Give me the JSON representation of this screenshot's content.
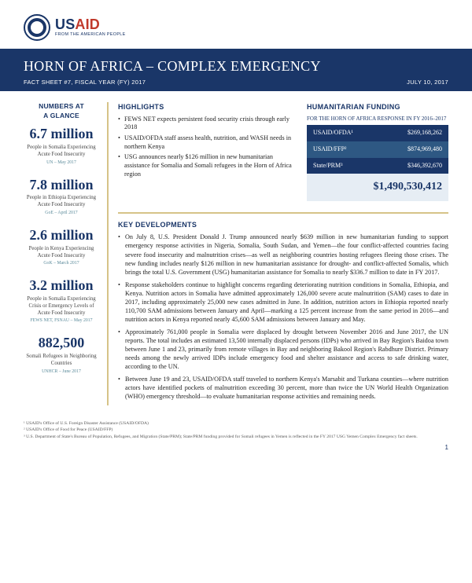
{
  "brand": {
    "name_a": "US",
    "name_b": "AID",
    "tag": "FROM THE AMERICAN PEOPLE"
  },
  "title": "HORN OF AFRICA – COMPLEX EMERGENCY",
  "factsheet": "FACT SHEET #7, FISCAL YEAR (FY) 2017",
  "date": "JULY 10, 2017",
  "sidebar_title1": "NUMBERS AT",
  "sidebar_title2": "A GLANCE",
  "stats": [
    {
      "value": "6.7 million",
      "desc": "People in Somalia Experiencing Acute Food Insecurity",
      "src": "UN – May 2017"
    },
    {
      "value": "7.8 million",
      "desc": "People in Ethiopia Experiencing Acute Food Insecurity",
      "src": "GoE – April 2017"
    },
    {
      "value": "2.6 million",
      "desc": "People in Kenya Experiencing Acute Food Insecurity",
      "src": "GoK – March 2017"
    },
    {
      "value": "3.2 million",
      "desc": "People in Somalia Experiencing Crisis or Emergency Levels of Acute Food Insecurity",
      "src": "FEWS NET, FSNAU – May 2017"
    },
    {
      "value": "882,500",
      "desc": "Somali Refugees in Neighboring Countries",
      "src": "UNHCR – June 2017"
    }
  ],
  "highlights_h": "HIGHLIGHTS",
  "highlights": [
    "FEWS NET expects persistent food security crisis through early 2018",
    "USAID/OFDA staff assess health, nutrition, and WASH needs in northern Kenya",
    "USG announces nearly $126 million in new humanitarian assistance for Somalia and Somali refugees in the Horn of Africa region"
  ],
  "funding_h": "HUMANITARIAN FUNDING",
  "funding_sub": "FOR THE HORN OF AFRICA RESPONSE IN FY 2016–2017",
  "funding_rows": [
    {
      "label": "USAID/OFDA¹",
      "amount": "$269,168,262"
    },
    {
      "label": "USAID/FFP²",
      "amount": "$874,969,480"
    },
    {
      "label": "State/PRM³",
      "amount": "$346,392,670"
    }
  ],
  "funding_total": "$1,490,530,412",
  "kd_h": "KEY DEVELOPMENTS",
  "kd": [
    "On July 8, U.S. President Donald J. Trump announced nearly $639 million in new humanitarian funding to support emergency response activities in Nigeria, Somalia, South Sudan, and Yemen—the four conflict-affected countries facing severe food insecurity and malnutrition crises—as well as neighboring countries hosting refugees fleeing those crises. The new funding includes nearly $126 million in new humanitarian assistance for drought- and conflict-affected Somalis, which brings the total U.S. Government (USG) humanitarian assistance for Somalia to nearly $336.7 million to date in FY 2017.",
    "Response stakeholders continue to highlight concerns regarding deteriorating nutrition conditions in Somalia, Ethiopia, and Kenya. Nutrition actors in Somalia have admitted approximately 126,000 severe acute malnutrition (SAM) cases to date in 2017, including approximately 25,000 new cases admitted in June. In addition, nutrition actors in Ethiopia reported nearly 110,700 SAM admissions between January and April—marking a 125 percent increase from the same period in 2016—and nutrition actors in Kenya reported nearly 45,600 SAM admissions between January and May.",
    "Approximately 761,000 people in Somalia were displaced by drought between November 2016 and June 2017, the UN reports. The total includes an estimated 13,500 internally displaced persons (IDPs) who arrived in Bay Region's Baidoa town between June 1 and 23, primarily from remote villages in Bay and neighboring Bakool Region's Rabdhure District. Primary needs among the newly arrived IDPs include emergency food and shelter assistance and access to safe drinking water, according to the UN.",
    "Between June 19 and 23, USAID/OFDA staff traveled to northern Kenya's Marsabit and Turkana counties—where nutrition actors have identified pockets of malnutrition exceeding 30 percent, more than twice the UN World Health Organization (WHO) emergency threshold—to evaluate humanitarian response activities and remaining needs."
  ],
  "footnotes": [
    "¹ USAID's Office of U.S. Foreign Disaster Assistance (USAID/OFDA)",
    "² USAID's Office of Food for Peace (USAID/FFP)",
    "³ U.S. Department of State's Bureau of Population, Refugees, and Migration (State/PRM); State/PRM funding provided for Somali refugees in Yemen is reflected in the FY 2017 USG Yemen Complex Emergency fact sheets."
  ],
  "page_number": "1",
  "colors": {
    "navy": "#1a3668",
    "gold_rule": "#d6c388",
    "total_bg": "#e6edf4",
    "teal": "#5a8a9a"
  }
}
